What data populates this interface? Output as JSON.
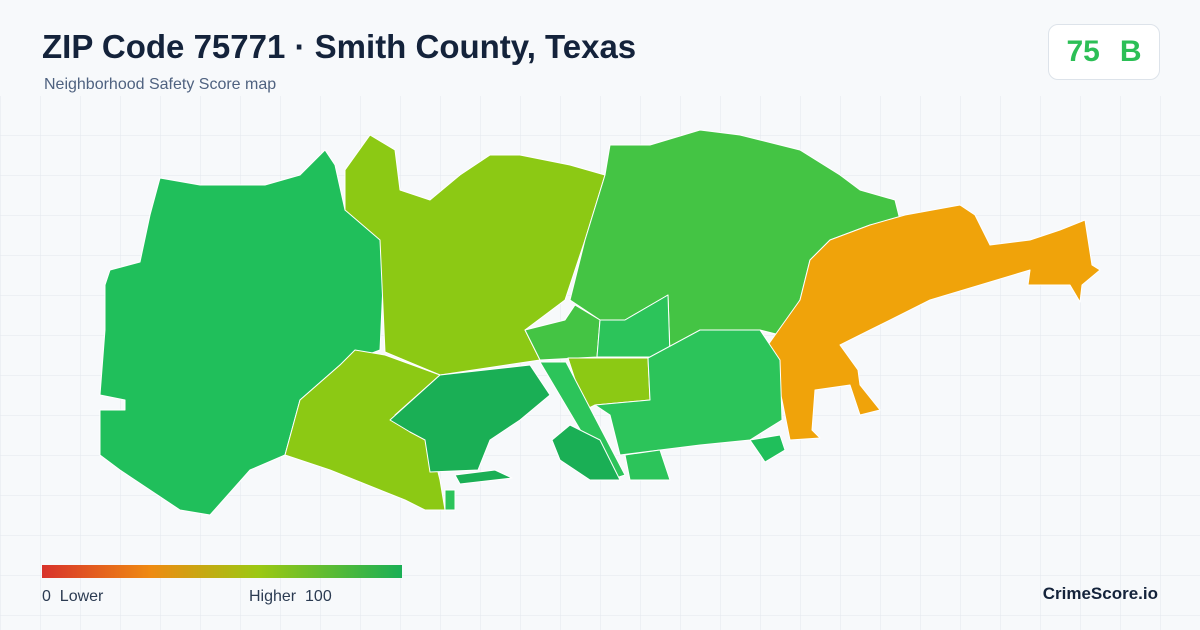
{
  "header": {
    "title": "ZIP Code 75771 · Smith County, Texas",
    "subtitle": "Neighborhood Safety Score map"
  },
  "score": {
    "value": 75,
    "grade": "B"
  },
  "legend": {
    "min": 0,
    "min_label": "Lower",
    "max_label": "Higher",
    "max": 100
  },
  "footer": {
    "brand": "CrimeScore.io"
  }
}
